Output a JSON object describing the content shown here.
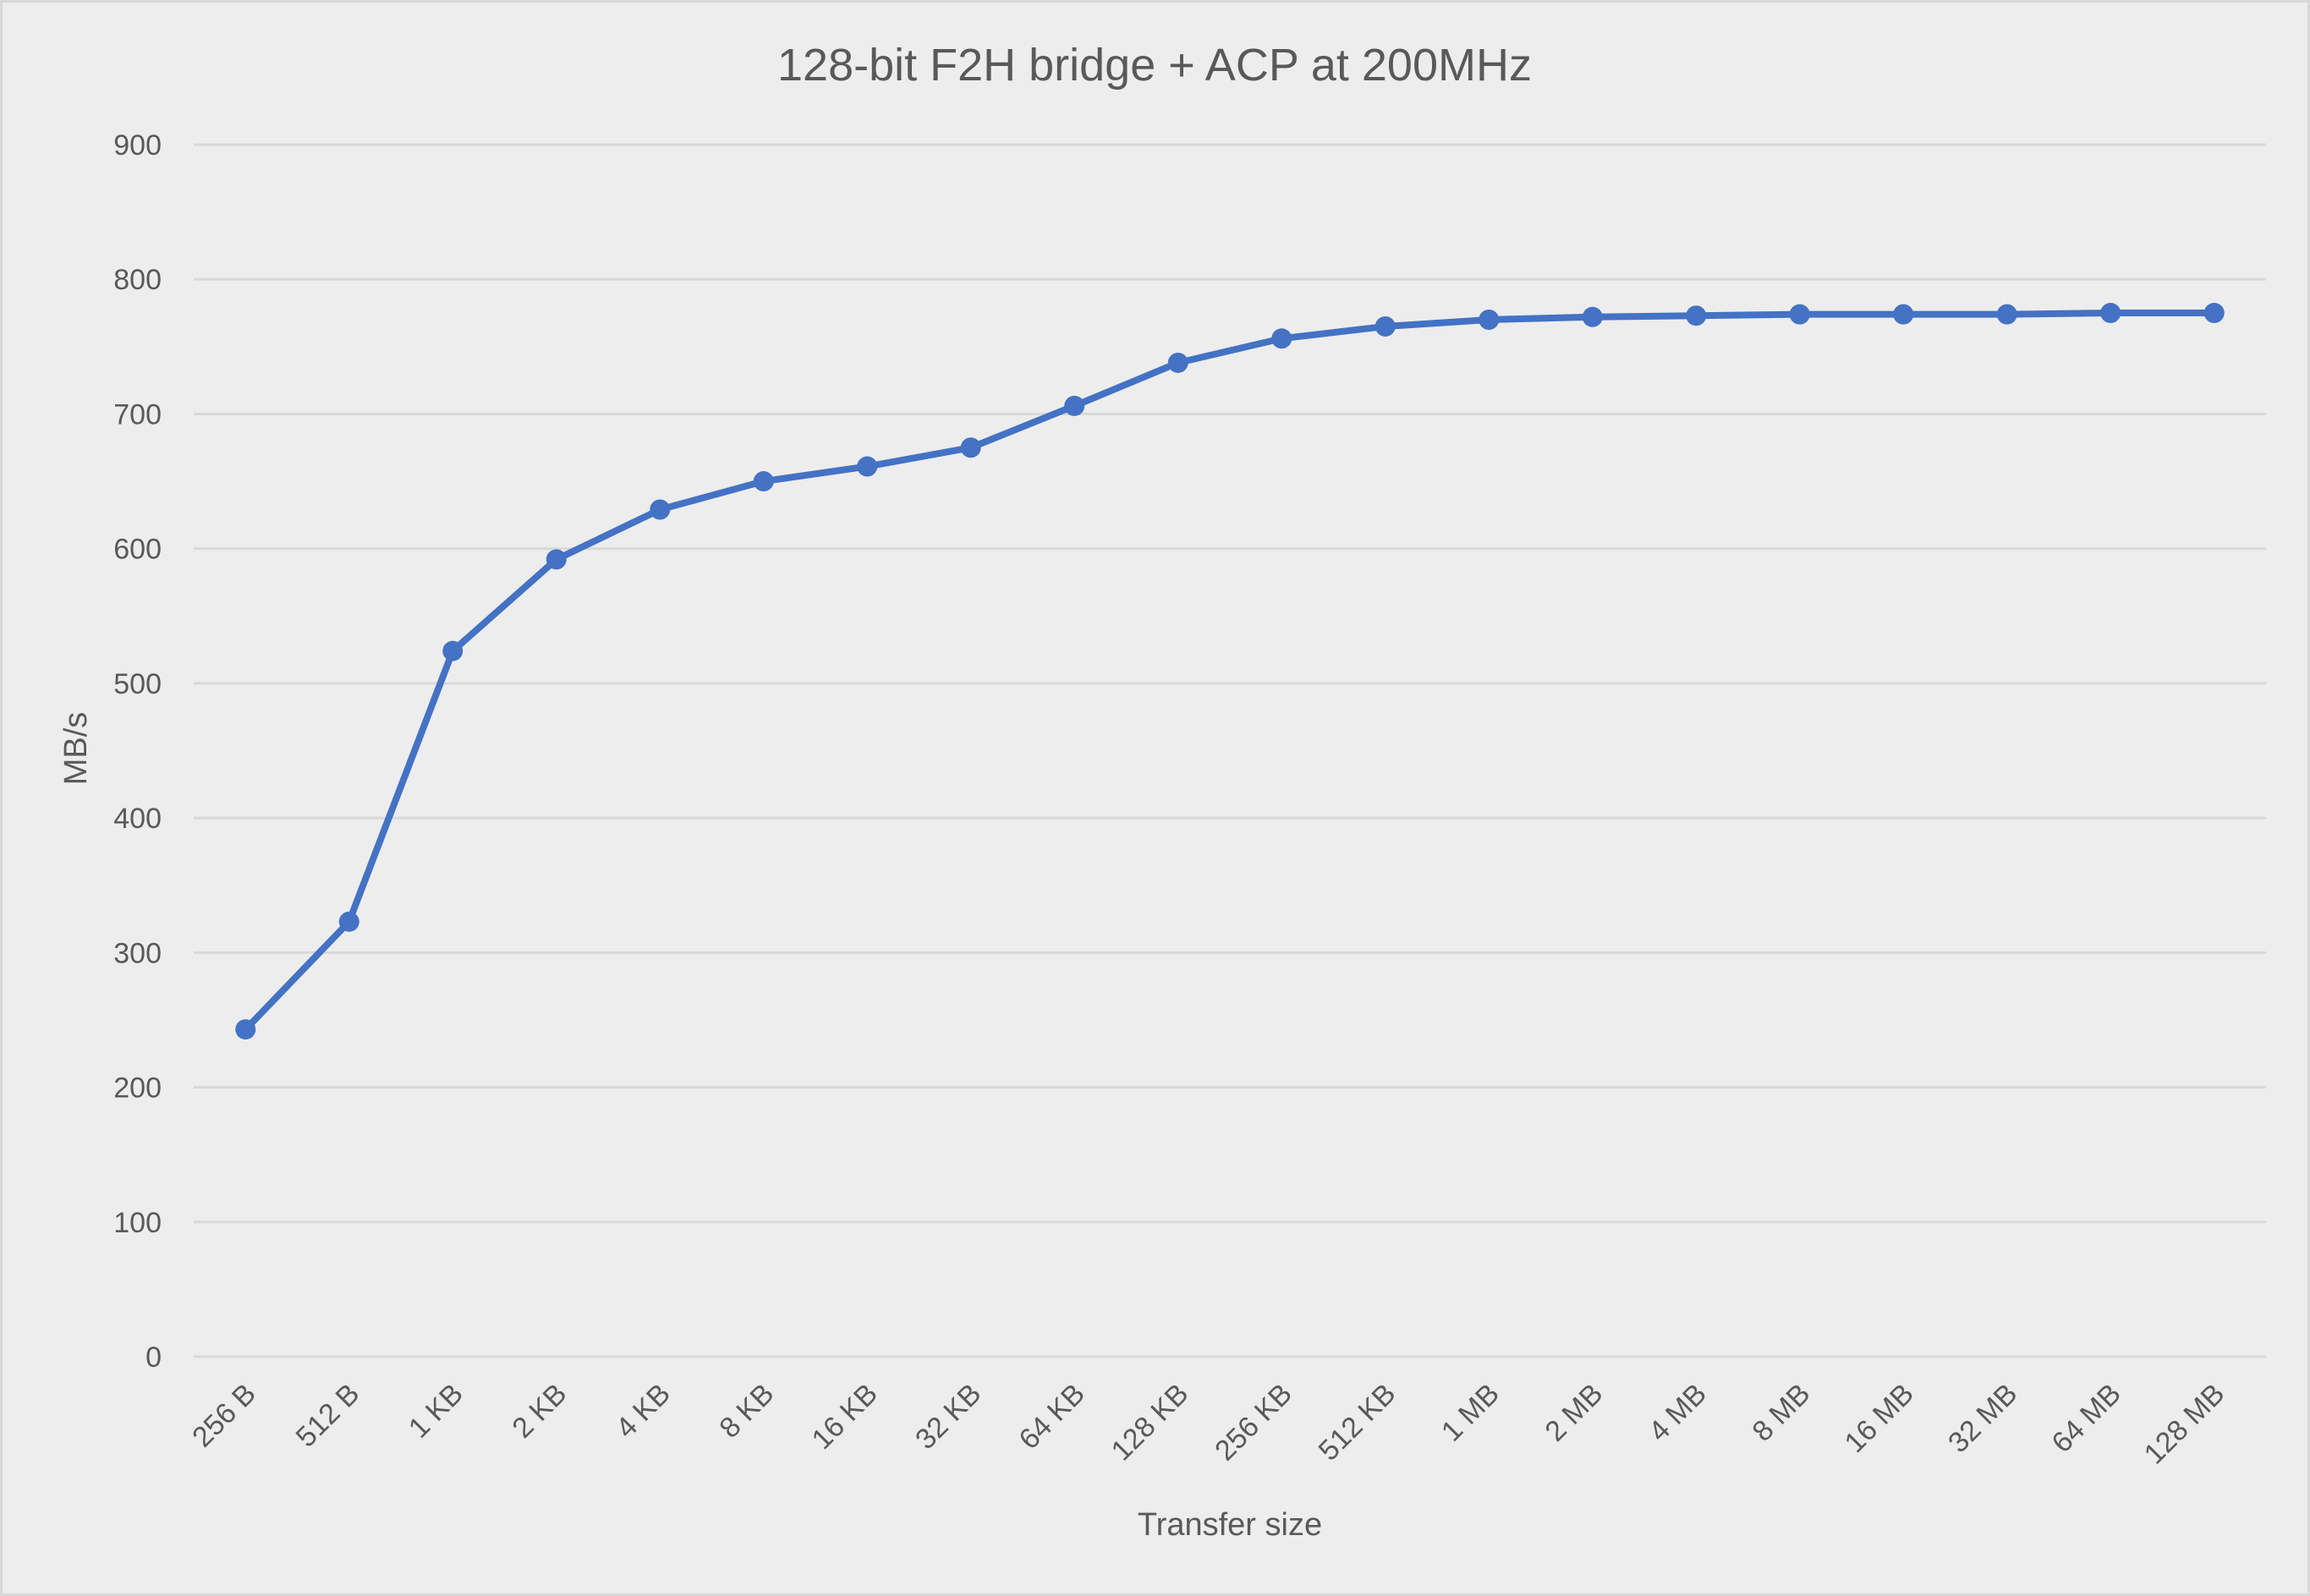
{
  "chart_data": {
    "type": "line",
    "title": "128-bit F2H bridge + ACP at 200MHz",
    "xlabel": "Transfer size",
    "ylabel": "MB/s",
    "ylim": [
      0,
      900
    ],
    "yticks": [
      0,
      100,
      200,
      300,
      400,
      500,
      600,
      700,
      800,
      900
    ],
    "grid": true,
    "legend": null,
    "categories": [
      "256 B",
      "512 B",
      "1 KB",
      "2 KB",
      "4 KB",
      "8 KB",
      "16 KB",
      "32 KB",
      "64 KB",
      "128 KB",
      "256 KB",
      "512 KB",
      "1 MB",
      "2 MB",
      "4 MB",
      "8 MB",
      "16 MB",
      "32 MB",
      "64 MB",
      "128 MB"
    ],
    "series": [
      {
        "name": "MB/s",
        "color": "#4472C4",
        "marker": "circle",
        "values": [
          243,
          323,
          524,
          592,
          629,
          650,
          661,
          675,
          706,
          738,
          756,
          765,
          770,
          772,
          773,
          774,
          774,
          774,
          775,
          775
        ]
      }
    ]
  },
  "colors": {
    "background": "#EDEDED",
    "border": "#D9D9D9",
    "gridline": "#D9D9D9",
    "text": "#595959",
    "series": "#4472C4"
  }
}
